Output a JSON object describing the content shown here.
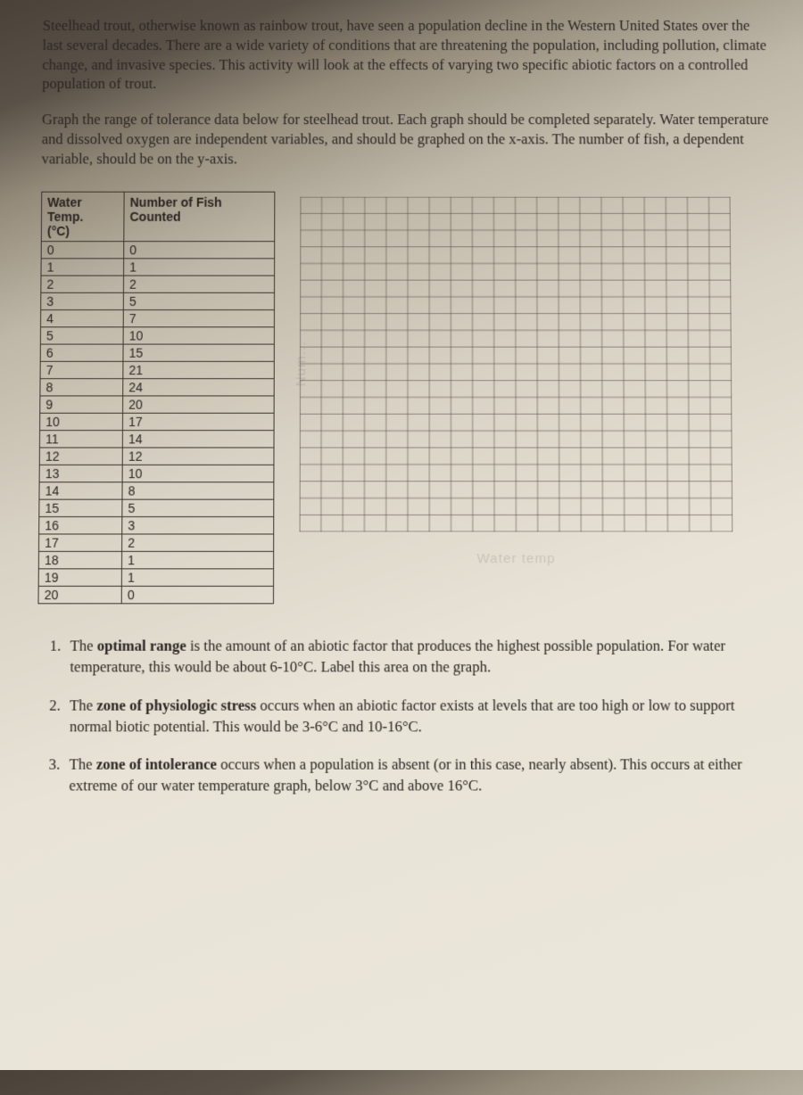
{
  "intro": "Steelhead trout, otherwise known as rainbow trout, have seen a population decline in the Western United States over the last several decades. There are a wide variety of conditions that are threatening the population, including pollution, climate change, and invasive species. This activity will look at the effects of varying two specific abiotic factors on a controlled population of trout.",
  "instructions": "Graph the range of tolerance data below for steelhead trout. Each graph should be completed separately. Water temperature and dissolved oxygen are independent variables, and should be graphed on the x-axis. The number of fish, a dependent variable, should be on the y-axis.",
  "table": {
    "headers": {
      "col1": "Water Temp. (°C)",
      "col2": "Number of Fish Counted"
    },
    "rows": [
      [
        "0",
        "0"
      ],
      [
        "1",
        "1"
      ],
      [
        "2",
        "2"
      ],
      [
        "3",
        "5"
      ],
      [
        "4",
        "7"
      ],
      [
        "5",
        "10"
      ],
      [
        "6",
        "15"
      ],
      [
        "7",
        "21"
      ],
      [
        "8",
        "24"
      ],
      [
        "9",
        "20"
      ],
      [
        "10",
        "17"
      ],
      [
        "11",
        "14"
      ],
      [
        "12",
        "12"
      ],
      [
        "13",
        "10"
      ],
      [
        "14",
        "8"
      ],
      [
        "15",
        "5"
      ],
      [
        "16",
        "3"
      ],
      [
        "17",
        "2"
      ],
      [
        "18",
        "1"
      ],
      [
        "19",
        "1"
      ],
      [
        "20",
        "0"
      ]
    ]
  },
  "grid": {
    "cols": 20,
    "rows": 20,
    "line_color": "#5a5048",
    "y_faint": "Num...",
    "x_faint": "Water temp"
  },
  "questions": [
    {
      "pre": "The ",
      "bold": "optimal range",
      "post": " is the amount of an abiotic factor that produces the highest possible population. For water temperature, this would be about 6-10°C. Label this area on the graph."
    },
    {
      "pre": "The ",
      "bold": "zone of physiologic stress",
      "post": " occurs when an abiotic factor exists at levels that are too high or low to support normal biotic potential. This would be 3-6°C and 10-16°C."
    },
    {
      "pre": "The ",
      "bold": "zone of intolerance",
      "post": " occurs when a population is absent (or in this case, nearly absent). This occurs at either extreme of our water temperature graph, below 3°C and above 16°C."
    }
  ],
  "colors": {
    "text": "#2a2522",
    "border": "#3a342d"
  }
}
